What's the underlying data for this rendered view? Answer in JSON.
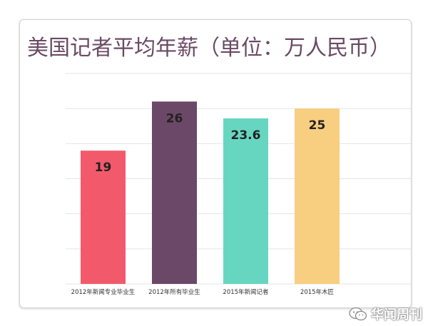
{
  "chart_data": {
    "type": "bar",
    "title": "美国记者平均年薪（单位：万人民币）",
    "categories": [
      "2012年新闻专业毕业生",
      "2012年所有毕业生",
      "2015年新闻记者",
      "2015年木匠"
    ],
    "values": [
      19,
      26,
      23.6,
      25
    ],
    "value_labels": [
      "19",
      "26",
      "23.6",
      "25"
    ],
    "colors": [
      "#f25a6b",
      "#6b4868",
      "#66d6c1",
      "#f8ce80"
    ],
    "ylim": [
      0,
      30
    ],
    "grid": true,
    "legend": "none"
  },
  "watermark": {
    "text": "华闻周刊",
    "icon": "wechat-icon"
  }
}
